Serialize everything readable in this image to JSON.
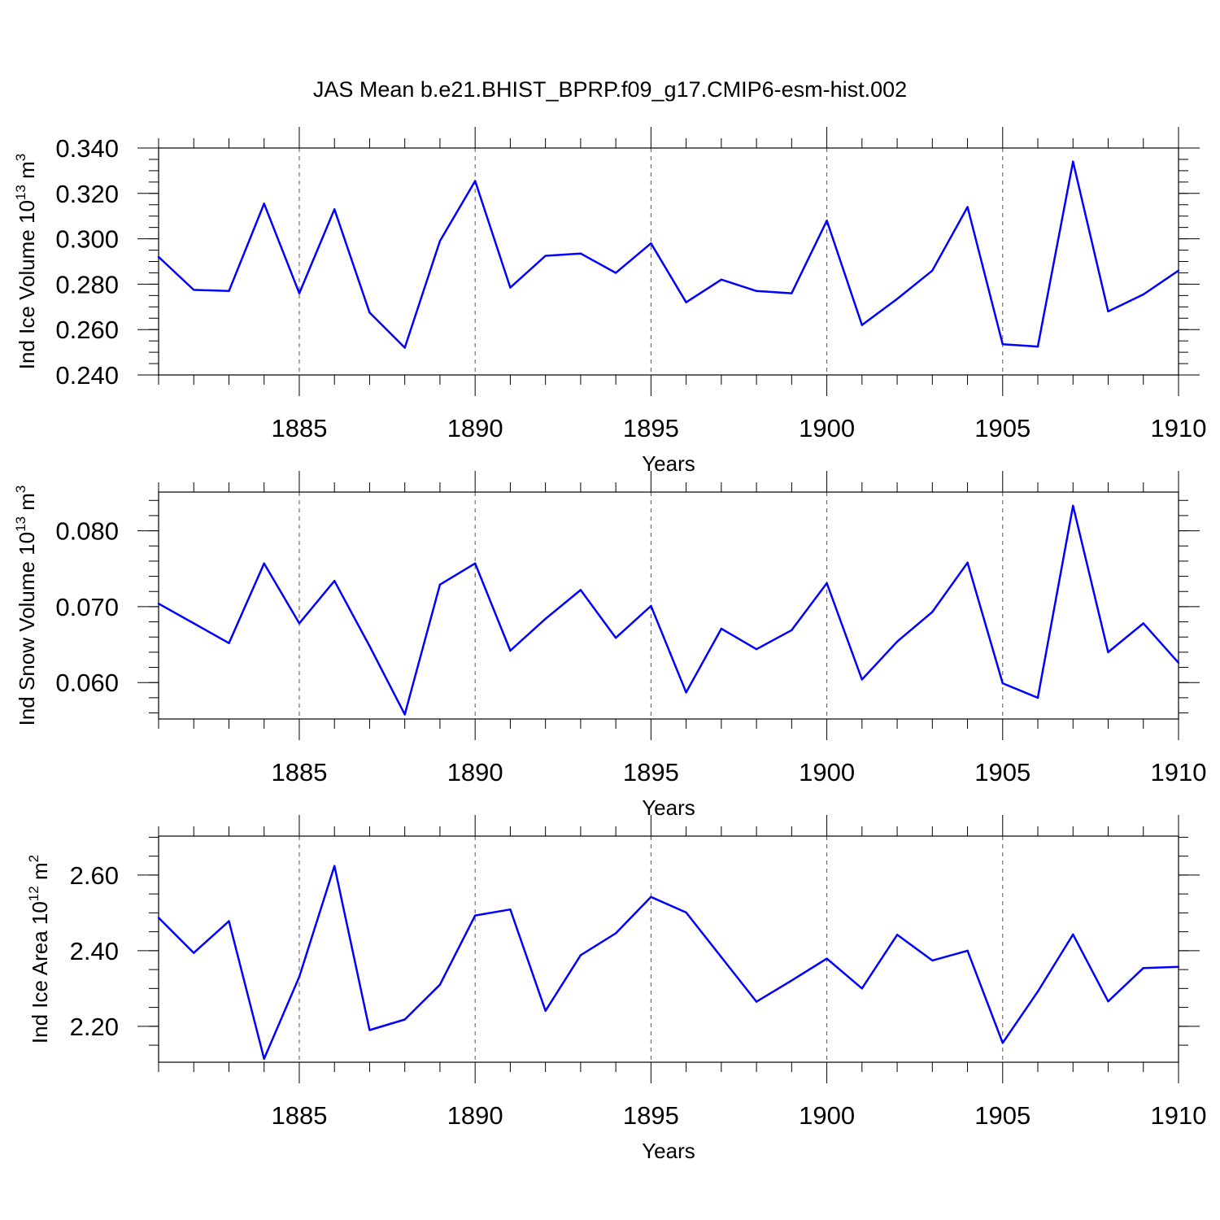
{
  "chart_data": {
    "title": "JAS Mean b.e21.BHIST_BPRP.f09_g17.CMIP6-esm-hist.002",
    "colors": {
      "line": "#0000ff",
      "axis": "#000000",
      "grid": "#555555"
    },
    "panels": [
      {
        "type": "line",
        "ylabel": "Ind Ice Volume 10",
        "ylabel_exp": "13",
        "ylabel_unit": " m",
        "ylabel_unit_exp": "3",
        "xlabel": "Years",
        "xlim": [
          1881,
          1910
        ],
        "ylim": [
          0.24,
          0.34
        ],
        "yticks": [
          0.24,
          0.26,
          0.28,
          0.3,
          0.32,
          0.34
        ],
        "yticklabels": [
          "0.240",
          "0.260",
          "0.280",
          "0.300",
          "0.320",
          "0.340"
        ],
        "yminor_step": 0.005,
        "xticks": [
          1885,
          1890,
          1895,
          1900,
          1905,
          1910
        ],
        "xticklabels": [
          "1885",
          "1890",
          "1895",
          "1900",
          "1905",
          "1910"
        ],
        "vgrid": [
          1885,
          1890,
          1895,
          1900,
          1905
        ],
        "x": [
          1881,
          1882,
          1883,
          1884,
          1885,
          1886,
          1887,
          1888,
          1889,
          1890,
          1891,
          1892,
          1893,
          1894,
          1895,
          1896,
          1897,
          1898,
          1899,
          1900,
          1901,
          1902,
          1903,
          1904,
          1905,
          1906,
          1907,
          1908,
          1909,
          1910
        ],
        "values": [
          0.292,
          0.2775,
          0.277,
          0.3155,
          0.276,
          0.313,
          0.2675,
          0.252,
          0.299,
          0.3255,
          0.2785,
          0.2925,
          0.2935,
          0.285,
          0.298,
          0.272,
          0.282,
          0.277,
          0.276,
          0.308,
          0.262,
          0.2735,
          0.286,
          0.314,
          0.2535,
          0.2525,
          0.334,
          0.268,
          0.2755,
          0.286
        ]
      },
      {
        "type": "line",
        "ylabel": "Ind Snow Volume 10",
        "ylabel_exp": "13",
        "ylabel_unit": " m",
        "ylabel_unit_exp": "3",
        "xlabel": "Years",
        "xlim": [
          1881,
          1910
        ],
        "ylim": [
          0.0552,
          0.0851
        ],
        "yticks": [
          0.06,
          0.07,
          0.08
        ],
        "yticklabels": [
          "0.060",
          "0.070",
          "0.080"
        ],
        "yminor_step": 0.002,
        "xticks": [
          1885,
          1890,
          1895,
          1900,
          1905,
          1910
        ],
        "xticklabels": [
          "1885",
          "1890",
          "1895",
          "1900",
          "1905",
          "1910"
        ],
        "vgrid": [
          1885,
          1890,
          1895,
          1900,
          1905
        ],
        "x": [
          1881,
          1882,
          1883,
          1884,
          1885,
          1886,
          1887,
          1888,
          1889,
          1890,
          1891,
          1892,
          1893,
          1894,
          1895,
          1896,
          1897,
          1898,
          1899,
          1900,
          1901,
          1902,
          1903,
          1904,
          1905,
          1906,
          1907,
          1908,
          1909,
          1910
        ],
        "values": [
          0.0704,
          0.0678,
          0.0652,
          0.0757,
          0.0678,
          0.0734,
          0.0648,
          0.0558,
          0.0729,
          0.0757,
          0.0642,
          0.0684,
          0.0722,
          0.0659,
          0.0701,
          0.0587,
          0.0671,
          0.0644,
          0.0669,
          0.0731,
          0.0604,
          0.0654,
          0.0693,
          0.0758,
          0.0599,
          0.058,
          0.0833,
          0.064,
          0.0678,
          0.0626
        ]
      },
      {
        "type": "line",
        "ylabel": "Ind Ice Area 10",
        "ylabel_exp": "12",
        "ylabel_unit": " m",
        "ylabel_unit_exp": "2",
        "xlabel": "Years",
        "xlim": [
          1881,
          1910
        ],
        "ylim": [
          2.105,
          2.703
        ],
        "yticks": [
          2.2,
          2.4,
          2.6
        ],
        "yticklabels": [
          "2.20",
          "2.40",
          "2.60"
        ],
        "yminor_step": 0.05,
        "xticks": [
          1885,
          1890,
          1895,
          1900,
          1905,
          1910
        ],
        "xticklabels": [
          "1885",
          "1890",
          "1895",
          "1900",
          "1905",
          "1910"
        ],
        "vgrid": [
          1885,
          1890,
          1895,
          1900,
          1905
        ],
        "x": [
          1881,
          1882,
          1883,
          1884,
          1885,
          1886,
          1887,
          1888,
          1889,
          1890,
          1891,
          1892,
          1893,
          1894,
          1895,
          1896,
          1897,
          1898,
          1899,
          1900,
          1901,
          1902,
          1903,
          1904,
          1905,
          1906,
          1907,
          1908,
          1909,
          1910
        ],
        "values": [
          2.487,
          2.394,
          2.478,
          2.114,
          2.331,
          2.624,
          2.19,
          2.218,
          2.31,
          2.493,
          2.509,
          2.241,
          2.388,
          2.446,
          2.542,
          2.501,
          2.383,
          2.265,
          2.321,
          2.379,
          2.3,
          2.442,
          2.374,
          2.4,
          2.156,
          2.292,
          2.443,
          2.266,
          2.354,
          2.357
        ]
      }
    ]
  }
}
